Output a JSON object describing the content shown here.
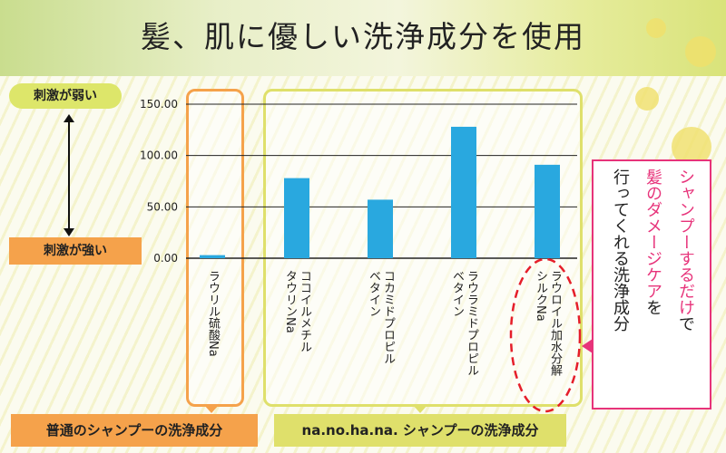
{
  "title": "髪、肌に優しい洗浄成分を使用",
  "scale_labels": {
    "weak": "刺激が弱い",
    "strong": "刺激が強い"
  },
  "footer": {
    "left": "普通のシャンプーの洗浄成分",
    "right": "na.no.ha.na. シャンプーの洗浄成分"
  },
  "callout": {
    "line1": "シャンプーするだけで",
    "line2": "髪のダメージケアを",
    "line3": "行ってくれる洗浄成分",
    "line1_pink": "シャンプーするだけ",
    "line1_black": "で",
    "line2_pink": "髪のダメージケア",
    "line2_black": "を"
  },
  "colors": {
    "bar": "#29a8df",
    "accent_orange": "#f5a24b",
    "accent_yellow": "#dfe06b",
    "accent_pink": "#e7337a"
  },
  "chart_data": {
    "type": "bar",
    "categories": [
      "ラウリル硫酸Na",
      "ココイルメチルタウリンNa",
      "コカミドプロピルベタイン",
      "ラウラミドプロピルベタイン",
      "ラウロイル加水分解シルクNa"
    ],
    "category_lines": [
      [
        "ラウリル硫酸Na"
      ],
      [
        "ココイルメチル",
        "タウリンNa"
      ],
      [
        "コカミドプロピル",
        "ベタイン"
      ],
      [
        "ラウラミドプロピル",
        "ベタイン"
      ],
      [
        "ラウロイル加水分解",
        "シルクNa"
      ]
    ],
    "values": [
      3,
      78,
      57,
      128,
      91
    ],
    "yticks": [
      "0.00",
      "50.00",
      "100.00",
      "150.00"
    ],
    "ytick_values": [
      0,
      50,
      100,
      150
    ],
    "ylim": [
      0,
      150
    ],
    "grid": true
  }
}
